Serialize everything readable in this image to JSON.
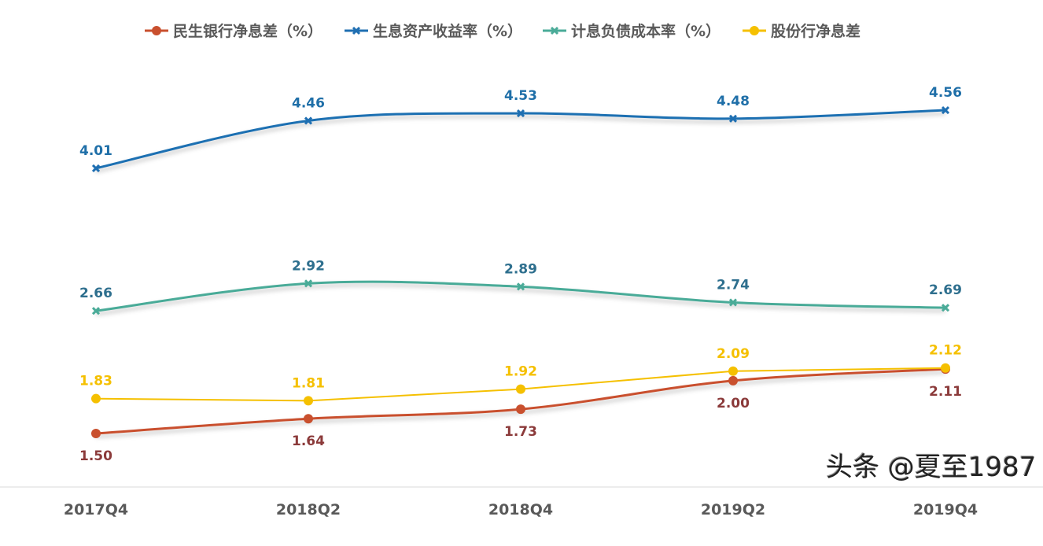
{
  "chart_data": {
    "type": "line",
    "categories": [
      "2017Q4",
      "2018Q2",
      "2018Q4",
      "2019Q2",
      "2019Q4"
    ],
    "ylim": [
      1.0,
      5.0
    ],
    "grid": false,
    "legend_position": "top",
    "series": [
      {
        "name": "民生银行净息差（%）",
        "values": [
          1.5,
          1.64,
          1.73,
          2.0,
          2.11
        ],
        "color": "#c9502e",
        "label_color": "#8b3a3a",
        "marker": "circle",
        "smooth": true,
        "label_pos": "below"
      },
      {
        "name": "生息资产收益率（%）",
        "values": [
          4.01,
          4.46,
          4.53,
          4.48,
          4.56
        ],
        "color": "#1f6fb2",
        "label_color": "#1f6fa8",
        "marker": "x",
        "smooth": true,
        "label_pos": "above"
      },
      {
        "name": "计息负债成本率（%）",
        "values": [
          2.66,
          2.92,
          2.89,
          2.74,
          2.69
        ],
        "color": "#4aab98",
        "label_color": "#2e6f8e",
        "marker": "x",
        "smooth": true,
        "label_pos": "above"
      },
      {
        "name": "股份行净息差",
        "values": [
          1.83,
          1.81,
          1.92,
          2.09,
          2.12
        ],
        "color": "#f5c000",
        "label_color": "#f5c000",
        "marker": "circle",
        "smooth": false,
        "label_pos": "above"
      }
    ]
  },
  "watermark": "头条 @夏至1987"
}
